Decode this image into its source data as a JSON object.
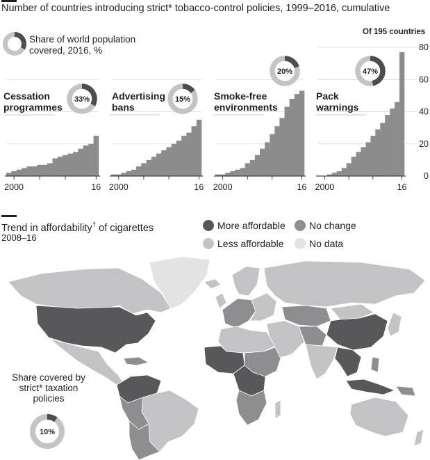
{
  "title": "Number of countries introducing strict* tobacco-control policies, 1999–2016, cumulative",
  "donut_legend": "Share of world population covered, 2016, %",
  "donut_legend_lines": [
    "Share of world population",
    "covered, 2016, %"
  ],
  "y_axis_note": "Of 195 countries",
  "colors": {
    "bar": "#8c8c8d",
    "donut_filled": "#4d4d4f",
    "donut_empty": "#c4c4c6",
    "more_affordable": "#58585a",
    "no_change": "#8e8e90",
    "less_affordable": "#c3c3c5",
    "no_data": "#e3e3e4",
    "ocean": "#ffffff"
  },
  "chart_data": {
    "type": "bar",
    "x_labels": [
      "2000",
      "16"
    ],
    "years": [
      1999,
      2000,
      2001,
      2002,
      2003,
      2004,
      2005,
      2006,
      2007,
      2008,
      2009,
      2010,
      2011,
      2012,
      2013,
      2014,
      2015,
      2016
    ],
    "ylim": [
      0,
      80
    ],
    "yticks": [
      "80",
      "60",
      "40",
      "20",
      "0"
    ],
    "series": [
      {
        "name": "Cessation programmes",
        "label_lines": [
          "Cessation",
          "programmes"
        ],
        "share_label": "33%",
        "share": 33,
        "values": [
          2,
          3,
          4,
          5,
          6,
          6,
          7,
          7,
          8,
          11,
          12,
          13,
          14,
          15,
          17,
          19,
          20,
          25
        ]
      },
      {
        "name": "Advertising bans",
        "label_lines": [
          "Advertising",
          "bans"
        ],
        "share_label": "15%",
        "share": 15,
        "values": [
          1,
          1,
          2,
          3,
          4,
          6,
          8,
          10,
          12,
          14,
          16,
          18,
          20,
          22,
          25,
          27,
          31,
          35
        ]
      },
      {
        "name": "Smoke-free environments",
        "label_lines": [
          "Smoke-free",
          "environments"
        ],
        "share_label": "20%",
        "share": 20,
        "values": [
          1,
          1,
          2,
          3,
          4,
          5,
          8,
          10,
          13,
          17,
          21,
          26,
          31,
          36,
          43,
          48,
          51,
          53
        ]
      },
      {
        "name": "Pack warnings",
        "label_lines": [
          "Pack",
          "warnings"
        ],
        "share_label": "47%",
        "share": 47,
        "values": [
          0,
          0,
          1,
          2,
          3,
          5,
          8,
          12,
          15,
          18,
          21,
          25,
          29,
          33,
          38,
          42,
          46,
          77
        ]
      }
    ]
  },
  "map": {
    "title": "Trend in affordability",
    "title_mark": "†",
    "title_suffix": " of cigarettes",
    "subtitle": "2008–16",
    "legend": [
      {
        "label": "More affordable",
        "color": "#58585a"
      },
      {
        "label": "No change",
        "color": "#8e8e90"
      },
      {
        "label": "Less affordable",
        "color": "#c3c3c5"
      },
      {
        "label": "No data",
        "color": "#e3e3e4"
      }
    ],
    "taxation_lines": [
      "Share covered by",
      "strict* taxation",
      "policies"
    ],
    "taxation_share_label": "10%",
    "taxation_share": 10
  }
}
